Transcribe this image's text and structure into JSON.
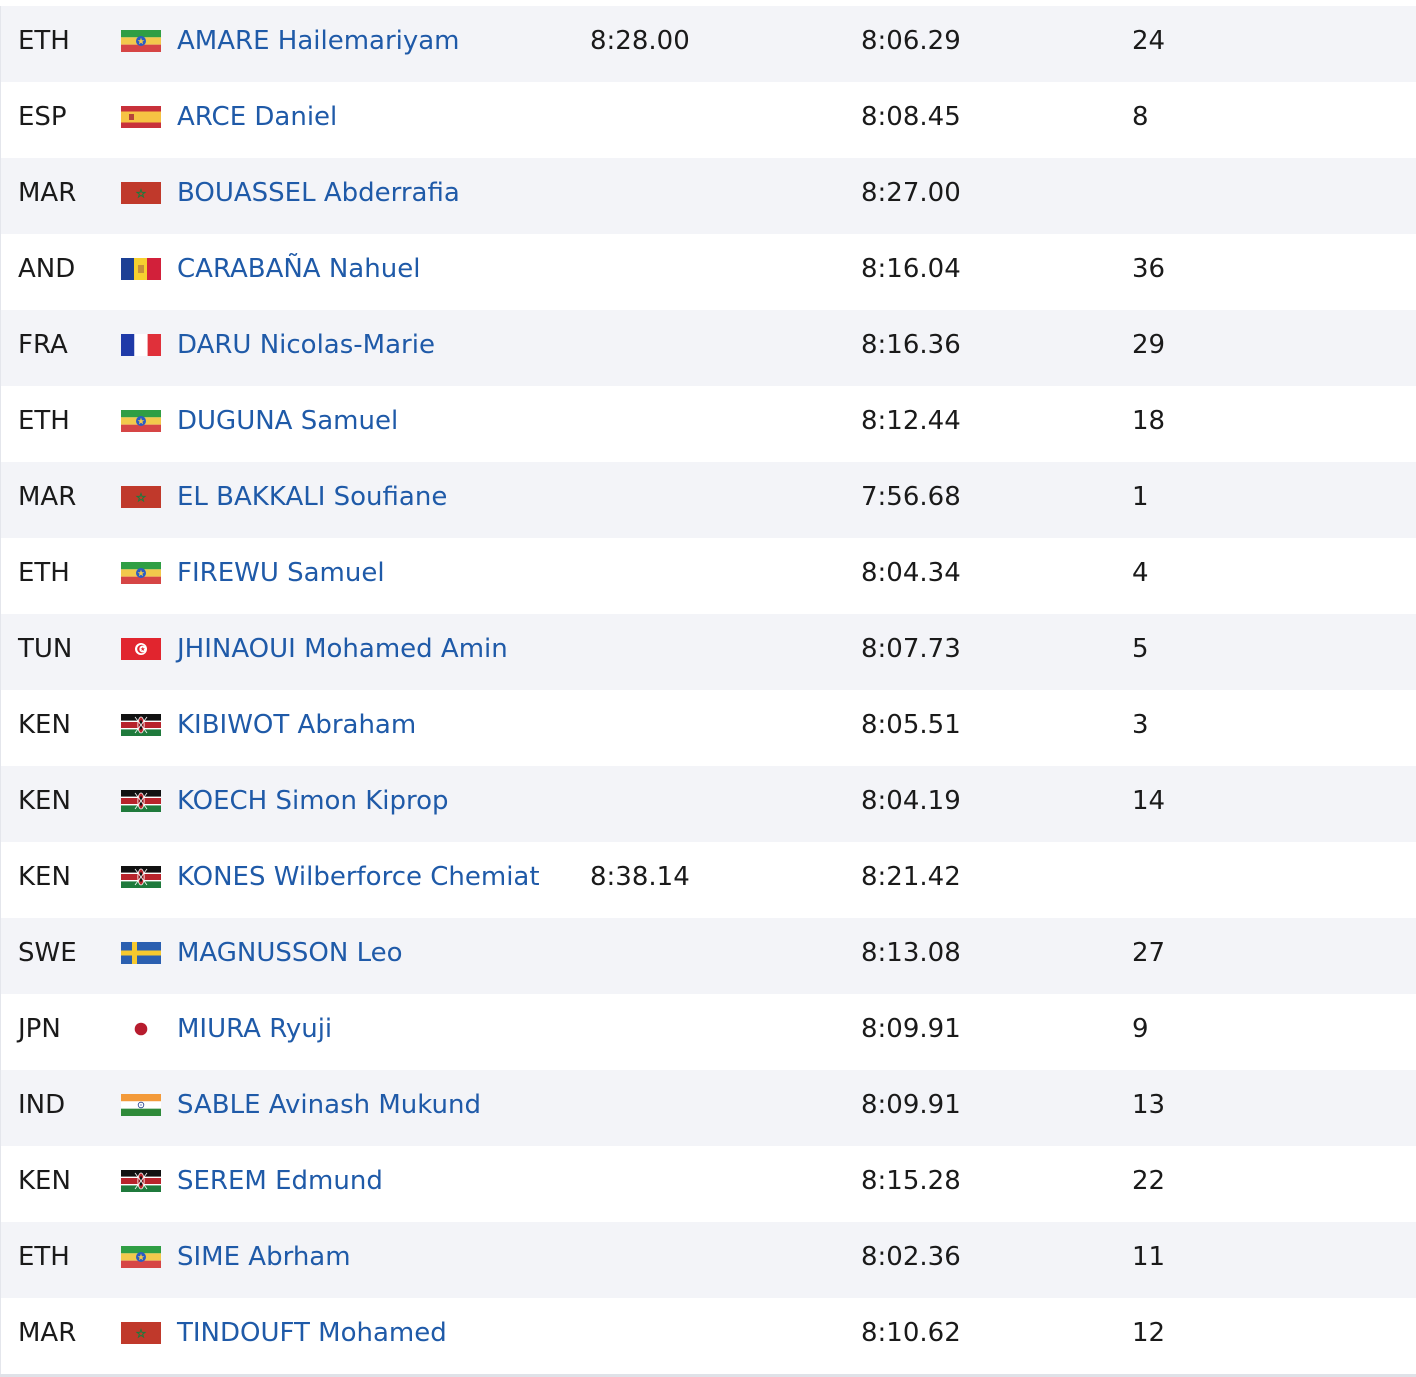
{
  "rows": [
    {
      "country": "ETH",
      "flag_icon": "ethiopia-flag-icon",
      "name": "AMARE Hailemariyam",
      "sb": "8:28.00",
      "pb": "8:06.29",
      "rank": "24"
    },
    {
      "country": "ESP",
      "flag_icon": "spain-flag-icon",
      "name": "ARCE Daniel",
      "sb": "",
      "pb": "8:08.45",
      "rank": "8"
    },
    {
      "country": "MAR",
      "flag_icon": "morocco-flag-icon",
      "name": "BOUASSEL Abderrafia",
      "sb": "",
      "pb": "8:27.00",
      "rank": ""
    },
    {
      "country": "AND",
      "flag_icon": "andorra-flag-icon",
      "name": "CARABAÑA Nahuel",
      "sb": "",
      "pb": "8:16.04",
      "rank": "36"
    },
    {
      "country": "FRA",
      "flag_icon": "france-flag-icon",
      "name": "DARU Nicolas-Marie",
      "sb": "",
      "pb": "8:16.36",
      "rank": "29"
    },
    {
      "country": "ETH",
      "flag_icon": "ethiopia-flag-icon",
      "name": "DUGUNA Samuel",
      "sb": "",
      "pb": "8:12.44",
      "rank": "18"
    },
    {
      "country": "MAR",
      "flag_icon": "morocco-flag-icon",
      "name": "EL BAKKALI Soufiane",
      "sb": "",
      "pb": "7:56.68",
      "rank": "1"
    },
    {
      "country": "ETH",
      "flag_icon": "ethiopia-flag-icon",
      "name": "FIREWU Samuel",
      "sb": "",
      "pb": "8:04.34",
      "rank": "4"
    },
    {
      "country": "TUN",
      "flag_icon": "tunisia-flag-icon",
      "name": "JHINAOUI Mohamed Amin",
      "sb": "",
      "pb": "8:07.73",
      "rank": "5"
    },
    {
      "country": "KEN",
      "flag_icon": "kenya-flag-icon",
      "name": "KIBIWOT Abraham",
      "sb": "",
      "pb": "8:05.51",
      "rank": "3"
    },
    {
      "country": "KEN",
      "flag_icon": "kenya-flag-icon",
      "name": "KOECH Simon Kiprop",
      "sb": "",
      "pb": "8:04.19",
      "rank": "14"
    },
    {
      "country": "KEN",
      "flag_icon": "kenya-flag-icon",
      "name": "KONES Wilberforce Chemiat",
      "sb": "8:38.14",
      "pb": "8:21.42",
      "rank": ""
    },
    {
      "country": "SWE",
      "flag_icon": "sweden-flag-icon",
      "name": "MAGNUSSON Leo",
      "sb": "",
      "pb": "8:13.08",
      "rank": "27"
    },
    {
      "country": "JPN",
      "flag_icon": "japan-flag-icon",
      "name": "MIURA Ryuji",
      "sb": "",
      "pb": "8:09.91",
      "rank": "9"
    },
    {
      "country": "IND",
      "flag_icon": "india-flag-icon",
      "name": "SABLE Avinash Mukund",
      "sb": "",
      "pb": "8:09.91",
      "rank": "13"
    },
    {
      "country": "KEN",
      "flag_icon": "kenya-flag-icon",
      "name": "SEREM Edmund",
      "sb": "",
      "pb": "8:15.28",
      "rank": "22"
    },
    {
      "country": "ETH",
      "flag_icon": "ethiopia-flag-icon",
      "name": "SIME Abrham",
      "sb": "",
      "pb": "8:02.36",
      "rank": "11"
    },
    {
      "country": "MAR",
      "flag_icon": "morocco-flag-icon",
      "name": "TINDOUFT Mohamed",
      "sb": "",
      "pb": "8:10.62",
      "rank": "12"
    }
  ],
  "colors": {
    "link": "#1f5aa8",
    "row_shaded": "#f3f4f8",
    "text": "#1a1a1a"
  }
}
